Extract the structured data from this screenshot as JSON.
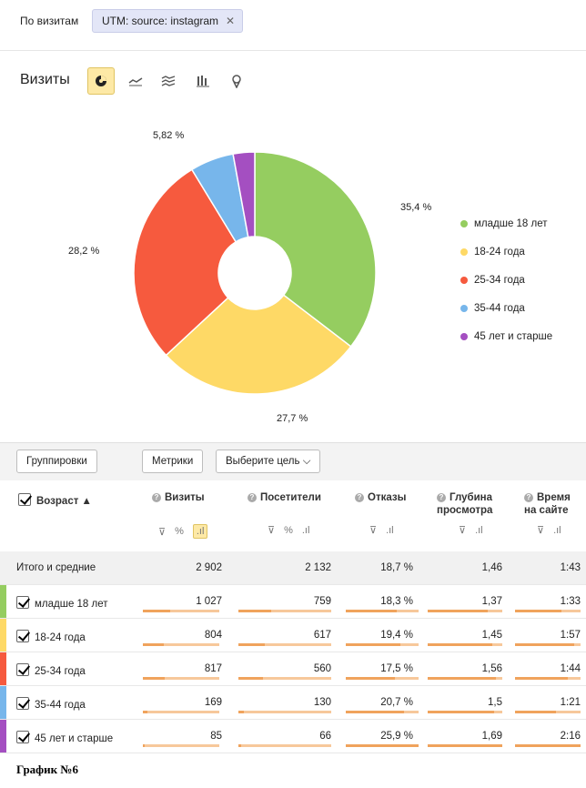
{
  "filters": {
    "label": "По визитам",
    "chip": "UTM: source: instagram"
  },
  "chart_header": {
    "title": "Визиты"
  },
  "chart_data": {
    "type": "pie",
    "donut": true,
    "categories": [
      "младше 18 лет",
      "18-24 года",
      "25-34 года",
      "35-44 года",
      "45 лет и старше"
    ],
    "values": [
      35.4,
      27.7,
      28.2,
      5.82,
      2.88
    ],
    "labels": [
      "35,4 %",
      "27,7 %",
      "28,2 %",
      "5,82 %",
      ""
    ],
    "colors": [
      "#95cd60",
      "#fed966",
      "#f65a3e",
      "#77b6eb",
      "#a44fc1"
    ],
    "legend_position": "right"
  },
  "buttons": {
    "groupings": "Группировки",
    "metrics": "Метрики",
    "goal": "Выберите цель"
  },
  "table": {
    "dimension_header": "Возраст",
    "columns": [
      "Визиты",
      "Посетители",
      "Отказы",
      "Глубина просмотра",
      "Время на сайте"
    ],
    "column_lines": [
      [
        "Визиты"
      ],
      [
        "Посетители"
      ],
      [
        "Отказы"
      ],
      [
        "Глубина",
        "просмотра"
      ],
      [
        "Время",
        "на сайте"
      ]
    ],
    "total": {
      "label": "Итого и средние",
      "values": [
        "2 902",
        "2 132",
        "18,7 %",
        "1,46",
        "1:43"
      ]
    },
    "rows": [
      {
        "label": "младше 18 лет",
        "values": [
          "1 027",
          "759",
          "18,3 %",
          "1,37",
          "1:33"
        ],
        "fill": [
          0.354,
          0.356,
          0.706,
          0.81,
          0.71
        ]
      },
      {
        "label": "18-24 года",
        "values": [
          "804",
          "617",
          "19,4 %",
          "1,45",
          "1:57"
        ],
        "fill": [
          0.277,
          0.289,
          0.749,
          0.86,
          0.9
        ]
      },
      {
        "label": "25-34 года",
        "values": [
          "817",
          "560",
          "17,5 %",
          "1,56",
          "1:44"
        ],
        "fill": [
          0.282,
          0.263,
          0.676,
          0.92,
          0.8
        ]
      },
      {
        "label": "35-44 года",
        "values": [
          "169",
          "130",
          "20,7 %",
          "1,5",
          "1:21"
        ],
        "fill": [
          0.058,
          0.061,
          0.799,
          0.89,
          0.62
        ]
      },
      {
        "label": "45 лет и старше",
        "values": [
          "85",
          "66",
          "25,9 %",
          "1,69",
          "2:16"
        ],
        "fill": [
          0.029,
          0.031,
          1.0,
          1.0,
          1.0
        ]
      }
    ]
  },
  "caption": "График №6"
}
